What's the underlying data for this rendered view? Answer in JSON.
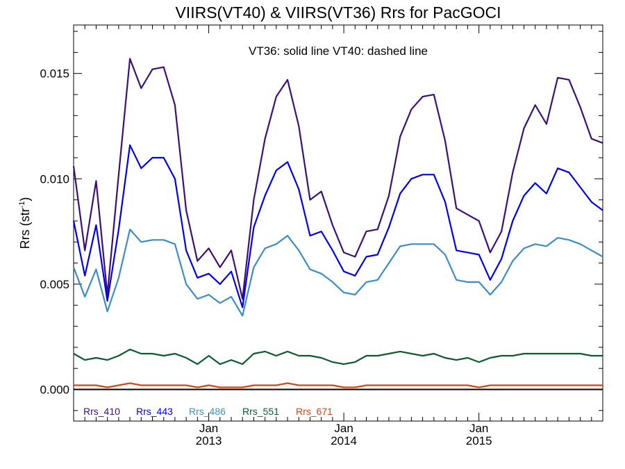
{
  "chart_data": {
    "type": "line",
    "title": "VIIRS(VT40) & VIIRS(VT36)  Rrs for PacGOCI",
    "annotation": "VT36: solid line   VT40: dashed line",
    "ylabel": "Rrs (str",
    "ylabel_sup": "-1",
    "ylabel_close": ")",
    "xlabel": "",
    "ylim": [
      -0.0015,
      0.0173
    ],
    "y_ticks": [
      0.0,
      0.005,
      0.01,
      0.015
    ],
    "y_tick_labels": [
      "0.000",
      "0.005",
      "0.010",
      "0.015"
    ],
    "xlim": [
      "2012-01",
      "2015-12"
    ],
    "x_ticks": [
      {
        "month": "2013-01",
        "line1": "Jan",
        "line2": "2013"
      },
      {
        "month": "2014-01",
        "line1": "Jan",
        "line2": "2014"
      },
      {
        "month": "2015-01",
        "line1": "Jan",
        "line2": "2015"
      }
    ],
    "grid": false,
    "zero_line": true,
    "legend_position": "bottom-left",
    "x": [
      "2012-01",
      "2012-02",
      "2012-03",
      "2012-04",
      "2012-05",
      "2012-06",
      "2012-07",
      "2012-08",
      "2012-09",
      "2012-10",
      "2012-11",
      "2012-12",
      "2013-01",
      "2013-02",
      "2013-03",
      "2013-04",
      "2013-05",
      "2013-06",
      "2013-07",
      "2013-08",
      "2013-09",
      "2013-10",
      "2013-11",
      "2013-12",
      "2014-01",
      "2014-02",
      "2014-03",
      "2014-04",
      "2014-05",
      "2014-06",
      "2014-07",
      "2014-08",
      "2014-09",
      "2014-10",
      "2014-11",
      "2014-12",
      "2015-01",
      "2015-02",
      "2015-03",
      "2015-04",
      "2015-05",
      "2015-06",
      "2015-07",
      "2015-08",
      "2015-09",
      "2015-10",
      "2015-11",
      "2015-12"
    ],
    "series": [
      {
        "name": "Rrs_410",
        "color": "#3c0f78",
        "values": [
          0.0106,
          0.0066,
          0.0099,
          0.0045,
          0.0102,
          0.0157,
          0.0143,
          0.0152,
          0.0153,
          0.0135,
          0.0085,
          0.0061,
          0.0067,
          0.0058,
          0.0066,
          0.0043,
          0.009,
          0.0119,
          0.0139,
          0.0147,
          0.0125,
          0.009,
          0.0094,
          0.0078,
          0.0065,
          0.0063,
          0.0075,
          0.0076,
          0.0092,
          0.012,
          0.0133,
          0.0139,
          0.014,
          0.0118,
          0.0086,
          0.0083,
          0.008,
          0.0065,
          0.0075,
          0.0103,
          0.0124,
          0.0135,
          0.0126,
          0.0148,
          0.0147,
          0.0134,
          0.0119,
          0.0117
        ]
      },
      {
        "name": "Rrs_443",
        "color": "#0000f0",
        "values": [
          0.008,
          0.0054,
          0.0078,
          0.0042,
          0.0076,
          0.0116,
          0.0105,
          0.011,
          0.011,
          0.01,
          0.0066,
          0.0053,
          0.0055,
          0.005,
          0.0056,
          0.0039,
          0.0077,
          0.0092,
          0.0104,
          0.0108,
          0.0095,
          0.0073,
          0.0075,
          0.0066,
          0.0056,
          0.0054,
          0.0063,
          0.0064,
          0.0077,
          0.0093,
          0.01,
          0.0102,
          0.0102,
          0.0089,
          0.0066,
          0.0065,
          0.0064,
          0.0052,
          0.0062,
          0.008,
          0.0092,
          0.0098,
          0.0093,
          0.0105,
          0.0103,
          0.0096,
          0.0089,
          0.0085
        ]
      },
      {
        "name": "Rrs_486",
        "color": "#3c8cc8",
        "values": [
          0.0058,
          0.0044,
          0.0057,
          0.0037,
          0.0053,
          0.0076,
          0.007,
          0.0071,
          0.0071,
          0.0069,
          0.005,
          0.0043,
          0.0045,
          0.0041,
          0.0044,
          0.0035,
          0.0058,
          0.0067,
          0.0069,
          0.0073,
          0.0066,
          0.0057,
          0.0055,
          0.0051,
          0.0046,
          0.0045,
          0.0051,
          0.0052,
          0.006,
          0.0068,
          0.0069,
          0.0069,
          0.0069,
          0.0064,
          0.0052,
          0.0051,
          0.0051,
          0.0045,
          0.0051,
          0.0061,
          0.0067,
          0.0069,
          0.0068,
          0.0072,
          0.0071,
          0.0069,
          0.0066,
          0.0063
        ]
      },
      {
        "name": "Rrs_551",
        "color": "#0a5a2d",
        "values": [
          0.0017,
          0.0014,
          0.0015,
          0.0014,
          0.0016,
          0.0019,
          0.0017,
          0.0017,
          0.0016,
          0.0017,
          0.0015,
          0.0012,
          0.0016,
          0.0012,
          0.0014,
          0.0012,
          0.0017,
          0.0018,
          0.0016,
          0.0018,
          0.0016,
          0.0016,
          0.0015,
          0.0013,
          0.0012,
          0.0013,
          0.0016,
          0.0016,
          0.0017,
          0.0018,
          0.0017,
          0.0016,
          0.0017,
          0.0015,
          0.0014,
          0.0015,
          0.0013,
          0.0015,
          0.0016,
          0.0016,
          0.0017,
          0.0017,
          0.0017,
          0.0017,
          0.0017,
          0.0017,
          0.0016,
          0.0016
        ]
      },
      {
        "name": "Rrs_671",
        "color": "#d24614",
        "values": [
          0.0002,
          0.0002,
          0.0002,
          0.0001,
          0.0002,
          0.0003,
          0.0002,
          0.0002,
          0.0002,
          0.0002,
          0.0002,
          0.0001,
          0.0002,
          0.0001,
          0.0001,
          0.0001,
          0.0002,
          0.0002,
          0.0002,
          0.0003,
          0.0002,
          0.0002,
          0.0002,
          0.0002,
          0.0001,
          0.0001,
          0.0002,
          0.0002,
          0.0002,
          0.0002,
          0.0002,
          0.0002,
          0.0002,
          0.0002,
          0.0002,
          0.0002,
          0.0001,
          0.0002,
          0.0002,
          0.0002,
          0.0002,
          0.0002,
          0.0002,
          0.0002,
          0.0002,
          0.0002,
          0.0002,
          0.0002
        ]
      }
    ]
  }
}
